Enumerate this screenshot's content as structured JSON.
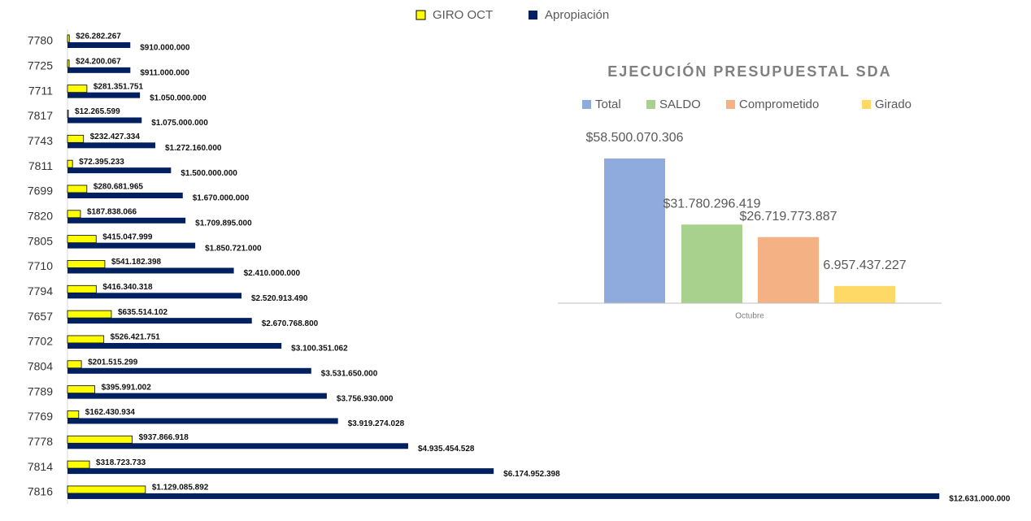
{
  "chart_data": [
    {
      "type": "barh",
      "categories": [
        "7780",
        "7725",
        "7711",
        "7817",
        "7743",
        "7811",
        "7699",
        "7820",
        "7805",
        "7710",
        "7794",
        "7657",
        "7702",
        "7804",
        "7789",
        "7769",
        "7778",
        "7814",
        "7816"
      ],
      "xlim": [
        0,
        13500000000
      ],
      "series": [
        {
          "name": "GIRO OCT",
          "color": "#ffff00",
          "values": [
            26282267,
            24200067,
            281351751,
            12265599,
            232427334,
            72395233,
            280681965,
            187838066,
            415047999,
            541182398,
            416340318,
            635514102,
            526421751,
            201515299,
            395991002,
            162430934,
            937866918,
            318723733,
            1129085892
          ],
          "value_labels": [
            "$26.282.267",
            "$24.200.067",
            "$281.351.751",
            "$12.265.599",
            "$232.427.334",
            "$72.395.233",
            "$280.681.965",
            "$187.838.066",
            "$415.047.999",
            "$541.182.398",
            "$416.340.318",
            "$635.514.102",
            "$526.421.751",
            "$201.515.299",
            "$395.991.002",
            "$162.430.934",
            "$937.866.918",
            "$318.723.733",
            "$1.129.085.892"
          ]
        },
        {
          "name": "Apropiación",
          "color": "#002060",
          "values": [
            910000000,
            911000000,
            1050000000,
            1075000000,
            1272160000,
            1500000000,
            1670000000,
            1709895000,
            1850721000,
            2410000000,
            2520913490,
            2670768800,
            3100351062,
            3531650000,
            3756930000,
            3919274028,
            4935454528,
            6174952398,
            12631000000
          ],
          "value_labels": [
            "$910.000.000",
            "$911.000.000",
            "$1.050.000.000",
            "$1.075.000.000",
            "$1.272.160.000",
            "$1.500.000.000",
            "$1.670.000.000",
            "$1.709.895.000",
            "$1.850.721.000",
            "$2.410.000.000",
            "$2.520.913.490",
            "$2.670.768.800",
            "$3.100.351.062",
            "$3.531.650.000",
            "$3.756.930.000",
            "$3.919.274.028",
            "$4.935.454.528",
            "$6.174.952.398",
            "$12.631.000.000"
          ]
        }
      ]
    },
    {
      "type": "bar",
      "title": "EJECUCIÓN PRESUPUESTAL SDA",
      "categories": [
        "Octubre"
      ],
      "ylim": [
        0,
        70000000000
      ],
      "series": [
        {
          "name": "Total",
          "color": "#8faadc",
          "values": [
            58500070306
          ],
          "value_labels": [
            "$58.500.070.306"
          ]
        },
        {
          "name": "SALDO",
          "color": "#a9d18e",
          "values": [
            31780296419
          ],
          "value_labels": [
            "$31.780.296.419"
          ]
        },
        {
          "name": "Comprometido",
          "color": "#f4b183",
          "values": [
            26719773887
          ],
          "value_labels": [
            "$26.719.773.887"
          ]
        },
        {
          "name": "Girado",
          "color": "#ffd966",
          "values": [
            6957437227
          ],
          "value_labels": [
            "6.957.437.227"
          ]
        }
      ]
    }
  ]
}
